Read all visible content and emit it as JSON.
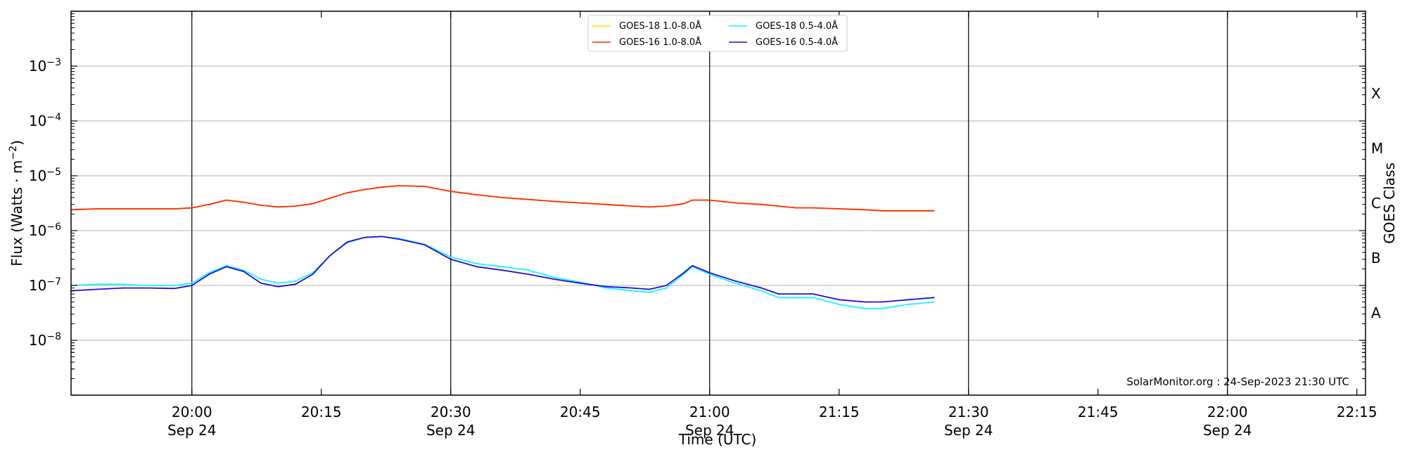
{
  "chart_data": {
    "type": "line",
    "title": "",
    "xlabel": "Time (UTC)",
    "ylabel_base": "Flux (Watts · m",
    "ylabel_exp": "−2",
    "ylabel_close": ")",
    "right_label": "GOES Class",
    "y_scale": "log",
    "ylim": [
      1e-09,
      0.01
    ],
    "xlim": [
      "2023-09-24 19:46",
      "2023-09-24 22:16"
    ],
    "grid": "horizontal at decades",
    "legend_position": "top-center",
    "credit": "SolarMonitor.org : 24-Sep-2023 21:30 UTC",
    "y_ticks": [
      {
        "value": 1e-08,
        "base": "10",
        "exp": "−8"
      },
      {
        "value": 1e-07,
        "base": "10",
        "exp": "−7"
      },
      {
        "value": 1e-06,
        "base": "10",
        "exp": "−6"
      },
      {
        "value": 1e-05,
        "base": "10",
        "exp": "−5"
      },
      {
        "value": 0.0001,
        "base": "10",
        "exp": "−4"
      },
      {
        "value": 0.001,
        "base": "10",
        "exp": "−3"
      }
    ],
    "x_ticks": [
      {
        "time": "2023-09-24 20:00",
        "line1": "20:00",
        "line2": "Sep 24"
      },
      {
        "time": "2023-09-24 20:15",
        "line1": "20:15",
        "line2": ""
      },
      {
        "time": "2023-09-24 20:30",
        "line1": "20:30",
        "line2": "Sep 24"
      },
      {
        "time": "2023-09-24 20:45",
        "line1": "20:45",
        "line2": ""
      },
      {
        "time": "2023-09-24 21:00",
        "line1": "21:00",
        "line2": "Sep 24"
      },
      {
        "time": "2023-09-24 21:15",
        "line1": "21:15",
        "line2": ""
      },
      {
        "time": "2023-09-24 21:30",
        "line1": "21:30",
        "line2": "Sep 24"
      },
      {
        "time": "2023-09-24 21:45",
        "line1": "21:45",
        "line2": ""
      },
      {
        "time": "2023-09-24 22:00",
        "line1": "22:00",
        "line2": "Sep 24"
      },
      {
        "time": "2023-09-24 22:15",
        "line1": "22:15",
        "line2": ""
      }
    ],
    "vertical_lines": [
      "2023-09-24 20:00",
      "2023-09-24 20:30",
      "2023-09-24 21:00",
      "2023-09-24 21:30",
      "2023-09-24 22:00"
    ],
    "goes_classes": [
      {
        "label": "A",
        "value": 3.16e-08
      },
      {
        "label": "B",
        "value": 3.16e-07
      },
      {
        "label": "C",
        "value": 3.16e-06
      },
      {
        "label": "M",
        "value": 3.16e-05
      },
      {
        "label": "X",
        "value": 0.000316
      }
    ],
    "x": [
      "2023-09-24 19:46",
      "2023-09-24 19:49",
      "2023-09-24 19:52",
      "2023-09-24 19:55",
      "2023-09-24 19:58",
      "2023-09-24 20:00",
      "2023-09-24 20:02",
      "2023-09-24 20:04",
      "2023-09-24 20:06",
      "2023-09-24 20:08",
      "2023-09-24 20:10",
      "2023-09-24 20:12",
      "2023-09-24 20:14",
      "2023-09-24 20:16",
      "2023-09-24 20:18",
      "2023-09-24 20:20",
      "2023-09-24 20:22",
      "2023-09-24 20:24",
      "2023-09-24 20:27",
      "2023-09-24 20:30",
      "2023-09-24 20:33",
      "2023-09-24 20:36",
      "2023-09-24 20:39",
      "2023-09-24 20:42",
      "2023-09-24 20:45",
      "2023-09-24 20:48",
      "2023-09-24 20:51",
      "2023-09-24 20:53",
      "2023-09-24 20:55",
      "2023-09-24 20:57",
      "2023-09-24 20:58",
      "2023-09-24 21:00",
      "2023-09-24 21:03",
      "2023-09-24 21:06",
      "2023-09-24 21:08",
      "2023-09-24 21:10",
      "2023-09-24 21:12",
      "2023-09-24 21:15",
      "2023-09-24 21:18",
      "2023-09-24 21:20",
      "2023-09-24 21:23",
      "2023-09-24 21:26"
    ],
    "series": [
      {
        "name": "GOES-18 1.0-8.0Å",
        "color": "#ffd700",
        "values": [
          2.4e-06,
          2.5e-06,
          2.5e-06,
          2.5e-06,
          2.5e-06,
          2.6e-06,
          3e-06,
          3.6e-06,
          3.3e-06,
          2.9e-06,
          2.7e-06,
          2.8e-06,
          3.1e-06,
          3.9e-06,
          4.9e-06,
          5.6e-06,
          6.2e-06,
          6.6e-06,
          6.4e-06,
          5.2e-06,
          4.5e-06,
          4e-06,
          3.7e-06,
          3.4e-06,
          3.2e-06,
          3e-06,
          2.8e-06,
          2.7e-06,
          2.8e-06,
          3.1e-06,
          3.6e-06,
          3.6e-06,
          3.2e-06,
          3e-06,
          2.8e-06,
          2.6e-06,
          2.6e-06,
          2.5e-06,
          2.4e-06,
          2.3e-06,
          2.3e-06,
          2.3e-06
        ]
      },
      {
        "name": "GOES-16 1.0-8.0Å",
        "color": "#ff2a00",
        "values": [
          2.4e-06,
          2.5e-06,
          2.5e-06,
          2.5e-06,
          2.5e-06,
          2.6e-06,
          3e-06,
          3.6e-06,
          3.3e-06,
          2.9e-06,
          2.7e-06,
          2.8e-06,
          3.1e-06,
          3.9e-06,
          4.9e-06,
          5.6e-06,
          6.2e-06,
          6.6e-06,
          6.4e-06,
          5.2e-06,
          4.5e-06,
          4e-06,
          3.7e-06,
          3.4e-06,
          3.2e-06,
          3e-06,
          2.8e-06,
          2.7e-06,
          2.8e-06,
          3.1e-06,
          3.6e-06,
          3.6e-06,
          3.2e-06,
          3e-06,
          2.8e-06,
          2.6e-06,
          2.6e-06,
          2.5e-06,
          2.4e-06,
          2.3e-06,
          2.3e-06,
          2.3e-06
        ]
      },
      {
        "name": "GOES-18 0.5-4.0Å",
        "color": "#19f4ff",
        "values": [
          1e-07,
          1.05e-07,
          1.05e-07,
          1e-07,
          1e-07,
          1.1e-07,
          1.7e-07,
          2.3e-07,
          1.9e-07,
          1.3e-07,
          1.1e-07,
          1.2e-07,
          1.7e-07,
          3.5e-07,
          6e-07,
          7.5e-07,
          7.8e-07,
          7.2e-07,
          5.6e-07,
          3.3e-07,
          2.5e-07,
          2.2e-07,
          1.9e-07,
          1.4e-07,
          1.15e-07,
          9e-08,
          8e-08,
          7.5e-08,
          9e-08,
          1.6e-07,
          2.2e-07,
          1.6e-07,
          1.1e-07,
          8e-08,
          6e-08,
          6e-08,
          6e-08,
          4.5e-08,
          3.8e-08,
          3.8e-08,
          4.5e-08,
          5e-08
        ]
      },
      {
        "name": "GOES-16 0.5-4.0Å",
        "color": "#1f0fd8",
        "values": [
          8e-08,
          8.5e-08,
          9e-08,
          9e-08,
          8.8e-08,
          1e-07,
          1.6e-07,
          2.2e-07,
          1.8e-07,
          1.1e-07,
          9.5e-08,
          1.05e-07,
          1.6e-07,
          3.5e-07,
          6.2e-07,
          7.5e-07,
          7.8e-07,
          7e-07,
          5.5e-07,
          3e-07,
          2.2e-07,
          1.9e-07,
          1.6e-07,
          1.3e-07,
          1.1e-07,
          9.5e-08,
          9e-08,
          8.5e-08,
          1e-07,
          1.7e-07,
          2.3e-07,
          1.7e-07,
          1.2e-07,
          9e-08,
          7e-08,
          7e-08,
          7e-08,
          5.5e-08,
          5e-08,
          5e-08,
          5.5e-08,
          6e-08
        ]
      }
    ]
  }
}
